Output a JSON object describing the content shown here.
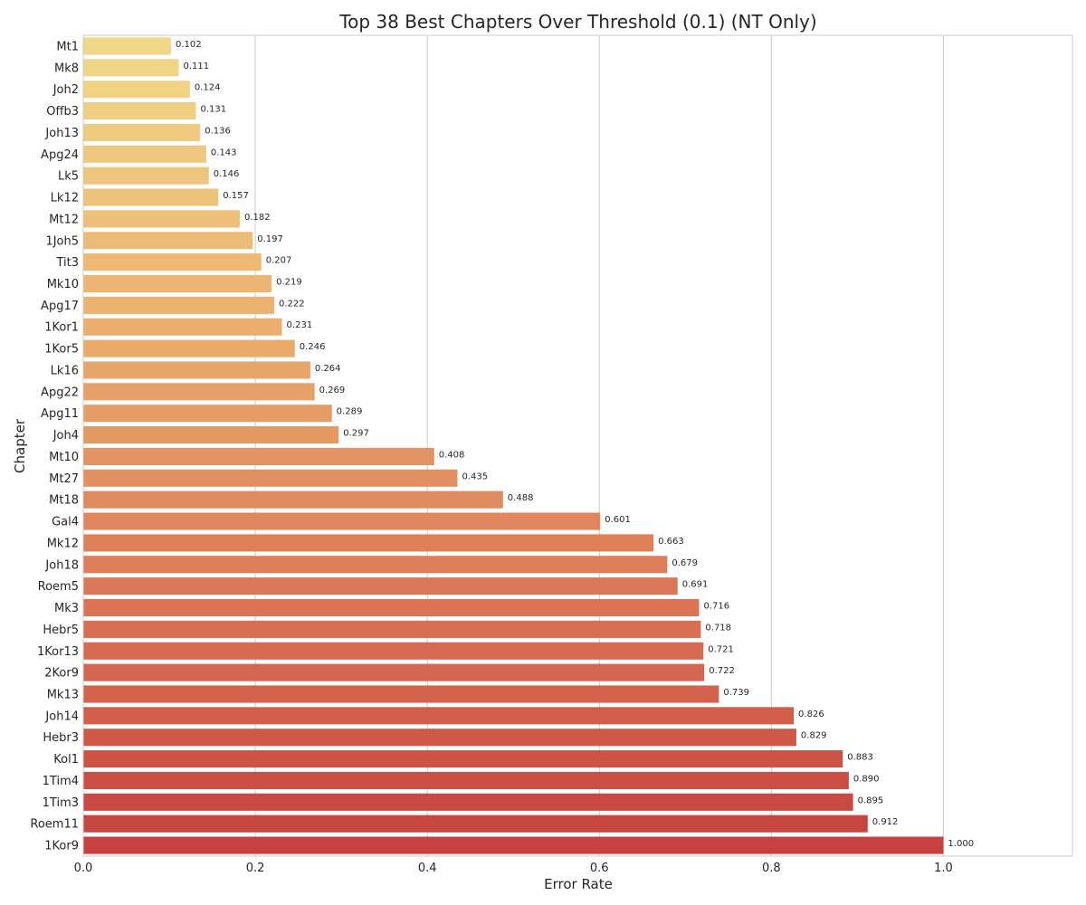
{
  "chart_data": {
    "type": "bar",
    "orientation": "horizontal",
    "title": "Top 38 Best Chapters Over Threshold (0.1) (NT Only)",
    "xlabel": "Error Rate",
    "ylabel": "Chapter",
    "xlim": [
      0,
      1.15
    ],
    "xticks": [
      "0.0",
      "0.2",
      "0.4",
      "0.6",
      "0.8",
      "1.0"
    ],
    "grid": "vertical",
    "palette": [
      "#f0d888",
      "#ebb16f",
      "#dc7a58",
      "#c6413f"
    ],
    "bars": [
      {
        "category": "Mt1",
        "value": 0.102,
        "label": "0.102"
      },
      {
        "category": "Mk8",
        "value": 0.111,
        "label": "0.111"
      },
      {
        "category": "Joh2",
        "value": 0.124,
        "label": "0.124"
      },
      {
        "category": "Offb3",
        "value": 0.131,
        "label": "0.131"
      },
      {
        "category": "Joh13",
        "value": 0.136,
        "label": "0.136"
      },
      {
        "category": "Apg24",
        "value": 0.143,
        "label": "0.143"
      },
      {
        "category": "Lk5",
        "value": 0.146,
        "label": "0.146"
      },
      {
        "category": "Lk12",
        "value": 0.157,
        "label": "0.157"
      },
      {
        "category": "Mt12",
        "value": 0.182,
        "label": "0.182"
      },
      {
        "category": "1Joh5",
        "value": 0.197,
        "label": "0.197"
      },
      {
        "category": "Tit3",
        "value": 0.207,
        "label": "0.207"
      },
      {
        "category": "Mk10",
        "value": 0.219,
        "label": "0.219"
      },
      {
        "category": "Apg17",
        "value": 0.222,
        "label": "0.222"
      },
      {
        "category": "1Kor1",
        "value": 0.231,
        "label": "0.231"
      },
      {
        "category": "1Kor5",
        "value": 0.246,
        "label": "0.246"
      },
      {
        "category": "Lk16",
        "value": 0.264,
        "label": "0.264"
      },
      {
        "category": "Apg22",
        "value": 0.269,
        "label": "0.269"
      },
      {
        "category": "Apg11",
        "value": 0.289,
        "label": "0.289"
      },
      {
        "category": "Joh4",
        "value": 0.297,
        "label": "0.297"
      },
      {
        "category": "Mt10",
        "value": 0.408,
        "label": "0.408"
      },
      {
        "category": "Mt27",
        "value": 0.435,
        "label": "0.435"
      },
      {
        "category": "Mt18",
        "value": 0.488,
        "label": "0.488"
      },
      {
        "category": "Gal4",
        "value": 0.601,
        "label": "0.601"
      },
      {
        "category": "Mk12",
        "value": 0.663,
        "label": "0.663"
      },
      {
        "category": "Joh18",
        "value": 0.679,
        "label": "0.679"
      },
      {
        "category": "Roem5",
        "value": 0.691,
        "label": "0.691"
      },
      {
        "category": "Mk3",
        "value": 0.716,
        "label": "0.716"
      },
      {
        "category": "Hebr5",
        "value": 0.718,
        "label": "0.718"
      },
      {
        "category": "1Kor13",
        "value": 0.721,
        "label": "0.721"
      },
      {
        "category": "2Kor9",
        "value": 0.722,
        "label": "0.722"
      },
      {
        "category": "Mk13",
        "value": 0.739,
        "label": "0.739"
      },
      {
        "category": "Joh14",
        "value": 0.826,
        "label": "0.826"
      },
      {
        "category": "Hebr3",
        "value": 0.829,
        "label": "0.829"
      },
      {
        "category": "Kol1",
        "value": 0.883,
        "label": "0.883"
      },
      {
        "category": "1Tim4",
        "value": 0.89,
        "label": "0.890"
      },
      {
        "category": "1Tim3",
        "value": 0.895,
        "label": "0.895"
      },
      {
        "category": "Roem11",
        "value": 0.912,
        "label": "0.912"
      },
      {
        "category": "1Kor9",
        "value": 1.0,
        "label": "1.000"
      }
    ]
  }
}
